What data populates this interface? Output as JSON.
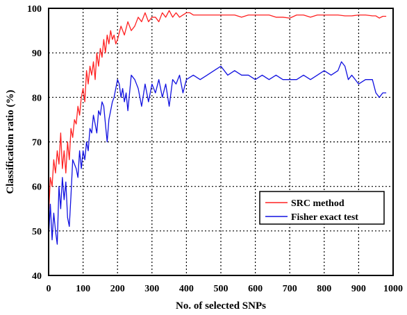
{
  "chart_data": {
    "type": "line",
    "title": "",
    "xlabel": "No. of selected SNPs",
    "ylabel": "Classification ratio (%)",
    "xlim": [
      0,
      1000
    ],
    "ylim": [
      40,
      100
    ],
    "xticks": [
      "0",
      "100",
      "200",
      "300",
      "400",
      "500",
      "600",
      "700",
      "800",
      "900",
      "1000"
    ],
    "yticks": [
      "40",
      "50",
      "60",
      "70",
      "80",
      "90",
      "100"
    ],
    "grid": true,
    "grid_style": "dotted",
    "legend_position": "lower-right",
    "series": [
      {
        "name": "SRC method",
        "color": "#ff2020",
        "x": [
          1,
          5,
          10,
          15,
          20,
          25,
          30,
          35,
          40,
          45,
          50,
          55,
          60,
          65,
          70,
          75,
          80,
          85,
          90,
          95,
          100,
          105,
          110,
          115,
          120,
          125,
          130,
          135,
          140,
          145,
          150,
          155,
          160,
          165,
          170,
          175,
          180,
          185,
          190,
          195,
          200,
          210,
          220,
          230,
          240,
          250,
          260,
          270,
          280,
          290,
          300,
          310,
          320,
          330,
          340,
          350,
          360,
          370,
          380,
          390,
          400,
          410,
          420,
          440,
          460,
          480,
          500,
          520,
          540,
          560,
          580,
          600,
          620,
          640,
          660,
          680,
          700,
          720,
          740,
          760,
          780,
          800,
          820,
          840,
          860,
          880,
          900,
          920,
          940,
          950,
          960,
          970,
          980
        ],
        "values": [
          55,
          62,
          60,
          66,
          63,
          68,
          65,
          72,
          64,
          68,
          63,
          70,
          66,
          73,
          71,
          75,
          74,
          78,
          76,
          80,
          82,
          79,
          86,
          83,
          87,
          85,
          88,
          84,
          90,
          87,
          91,
          89,
          93,
          90,
          94,
          92,
          95,
          93,
          94,
          92,
          93,
          96,
          94,
          97,
          95,
          96,
          98,
          97,
          99,
          97,
          98,
          98,
          97,
          99,
          98,
          99.5,
          98,
          99,
          98,
          98.5,
          99,
          99,
          98.5,
          98.5,
          98.5,
          98.5,
          98.5,
          98.5,
          98.5,
          98,
          98.5,
          98.5,
          98.5,
          98.5,
          98,
          98,
          97.8,
          98.5,
          98.5,
          98,
          98.5,
          98.5,
          98.5,
          98.5,
          98.3,
          98.3,
          98.5,
          98.5,
          98.3,
          98.3,
          97.8,
          98.2,
          98.2
        ]
      },
      {
        "name": "Fisher exact test",
        "color": "#1010e0",
        "x": [
          1,
          5,
          10,
          15,
          20,
          25,
          30,
          35,
          40,
          45,
          50,
          55,
          60,
          65,
          70,
          75,
          80,
          85,
          90,
          95,
          100,
          105,
          110,
          115,
          120,
          125,
          130,
          135,
          140,
          145,
          150,
          155,
          160,
          165,
          170,
          175,
          180,
          185,
          190,
          195,
          200,
          205,
          210,
          215,
          220,
          225,
          230,
          240,
          250,
          260,
          270,
          280,
          290,
          300,
          310,
          320,
          330,
          340,
          350,
          360,
          370,
          380,
          390,
          400,
          420,
          440,
          460,
          480,
          500,
          520,
          540,
          560,
          580,
          600,
          620,
          640,
          660,
          680,
          700,
          720,
          740,
          760,
          780,
          800,
          820,
          840,
          850,
          860,
          870,
          880,
          900,
          920,
          940,
          950,
          960,
          970,
          980
        ],
        "values": [
          50,
          56,
          48,
          54,
          50,
          47,
          60,
          55,
          62,
          57,
          61,
          53,
          51,
          58,
          66,
          65,
          64,
          62,
          68,
          64,
          68,
          66,
          70,
          68,
          73,
          72,
          76,
          74,
          72,
          77,
          76,
          79,
          78,
          74,
          70,
          75,
          77,
          79,
          80,
          82,
          84,
          83,
          80,
          82,
          79,
          81,
          77,
          85,
          84,
          82,
          78,
          83,
          79,
          83,
          81,
          84,
          80,
          83,
          78,
          84,
          83,
          85,
          81,
          84,
          85,
          84,
          85,
          86,
          87,
          85,
          86,
          85,
          85,
          84,
          85,
          84,
          85,
          84,
          84,
          84,
          85,
          84,
          85,
          86,
          85,
          86,
          88,
          87,
          84,
          85,
          83,
          84,
          84,
          81,
          80,
          81,
          81
        ]
      }
    ]
  }
}
